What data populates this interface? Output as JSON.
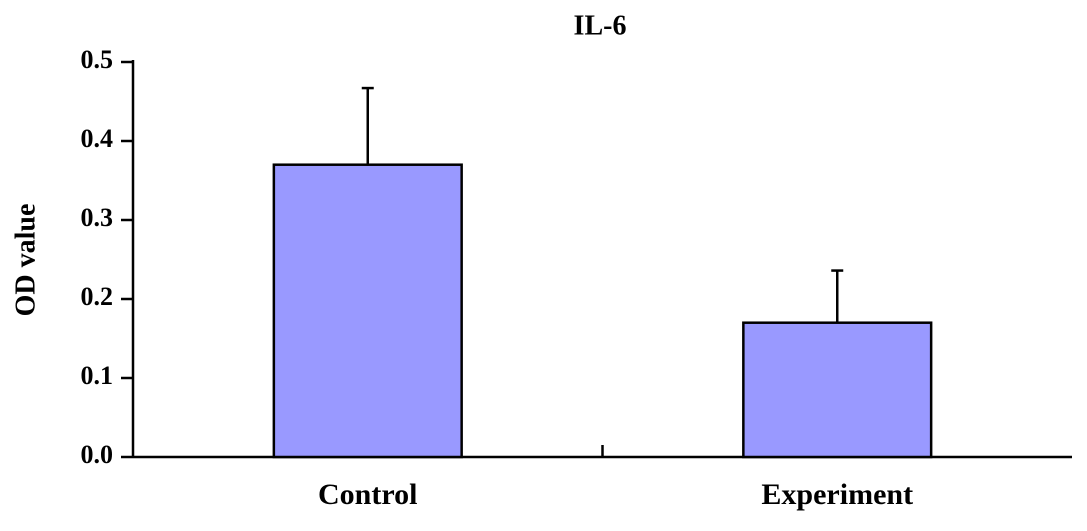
{
  "chart_data": {
    "type": "bar",
    "title": "IL-6",
    "y_label": "OD value",
    "categories": [
      "Control",
      "Experiment"
    ],
    "values": [
      0.37,
      0.17
    ],
    "errors": [
      0.097,
      0.066
    ],
    "color": "#9999ff",
    "ylim": [
      0,
      0.5
    ],
    "yticks": [
      {
        "value": 0,
        "label": "0.0"
      },
      0.1,
      0.2,
      0.3,
      0.4,
      0.5
    ]
  }
}
